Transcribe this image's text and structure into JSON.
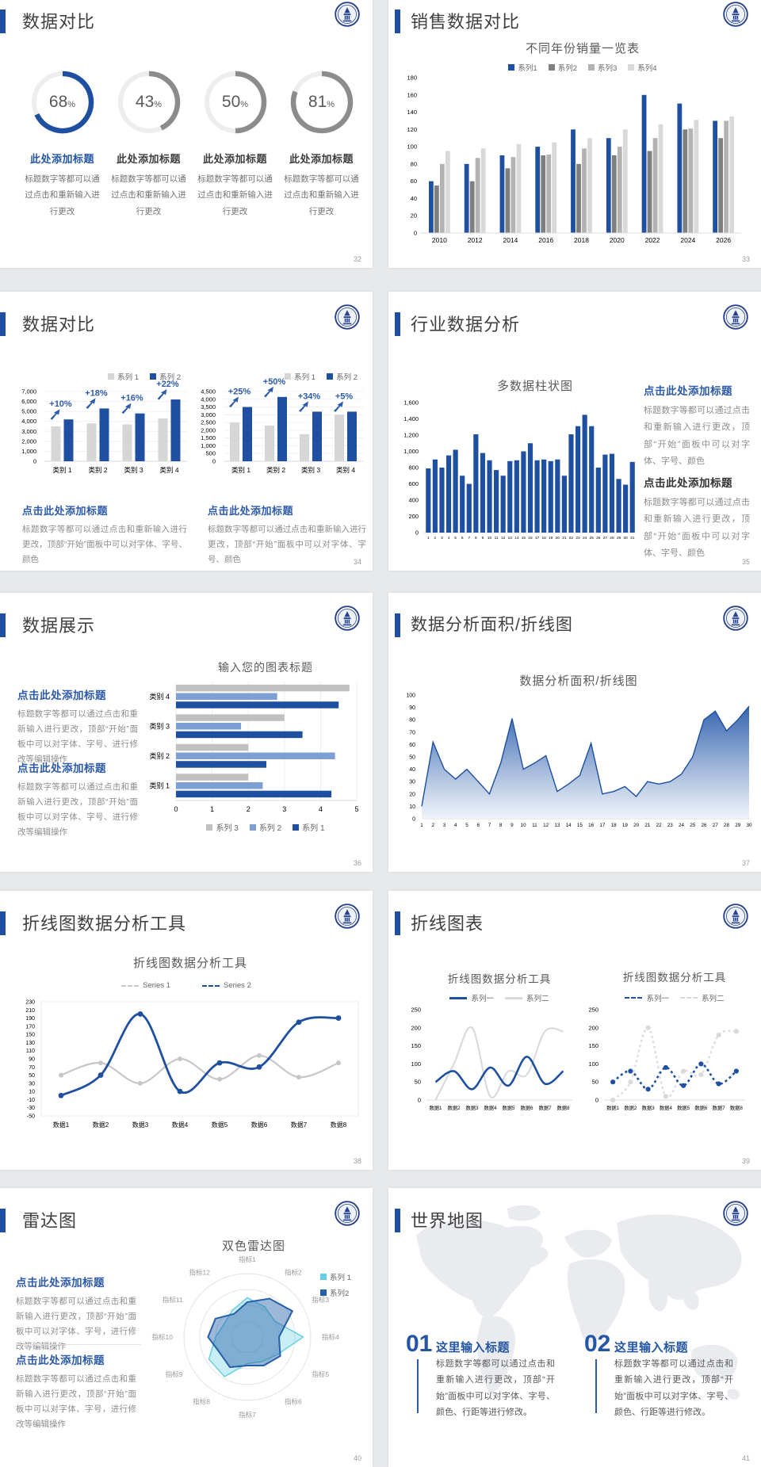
{
  "colors": {
    "primary_blue": "#1f4fa0",
    "accent_blue": "#2d5ba9",
    "dark_gray_series": "#7f7f7f",
    "mid_gray_series": "#b3b3b3",
    "light_gray_series": "#d9d9d9",
    "bar_gray": "#d6d6d6",
    "medium_blue_series": "#7d9fd3",
    "cyan_series": "#67cfe3",
    "line_gray": "#c7c7c7",
    "axis_text": "#8c8c8c",
    "page_bg": "#e8e9eb"
  },
  "slides": [
    {
      "title": "数据对比",
      "page": "32",
      "items": [
        {
          "pct": "68",
          "title": "此处添加标题",
          "body": "标题数字等都可以通过点击和重新输入进行更改"
        },
        {
          "pct": "43",
          "title": "此处添加标题",
          "body": "标题数字等都可以通过点击和重新输入进行更改"
        },
        {
          "pct": "50",
          "title": "此处添加标题",
          "body": "标题数字等都可以通过点击和重新输入进行更改"
        },
        {
          "pct": "81",
          "title": "此处添加标题",
          "body": "标题数字等都可以通过点击和重新输入进行更改"
        }
      ]
    },
    {
      "title": "销售数据对比",
      "page": "33",
      "chart": {
        "type": "bar",
        "title": "不同年份销量一览表",
        "categories": [
          "2010",
          "2012",
          "2014",
          "2016",
          "2018",
          "2020",
          "2022",
          "2024",
          "2026"
        ],
        "ymax": 180,
        "ystep": 20,
        "series": [
          {
            "name": "系列1",
            "color": "#1f4fa0",
            "values": [
              60,
              80,
              90,
              100,
              120,
              110,
              160,
              150,
              130
            ]
          },
          {
            "name": "系列2",
            "color": "#7f7f7f",
            "values": [
              55,
              60,
              75,
              90,
              80,
              90,
              95,
              120,
              110
            ]
          },
          {
            "name": "系列3",
            "color": "#b3b3b3",
            "values": [
              80,
              87,
              88,
              91,
              98,
              100,
              110,
              121,
              130
            ]
          },
          {
            "name": "系列4",
            "color": "#d9d9d9",
            "values": [
              95,
              98,
              103,
              105,
              110,
              120,
              126,
              131,
              135
            ]
          }
        ]
      }
    },
    {
      "title": "数据对比",
      "page": "34",
      "legend": [
        "系列 1",
        "系列 2"
      ],
      "charts": [
        {
          "type": "bar",
          "categories": [
            "类别 1",
            "类别 2",
            "类别 3",
            "类别 4"
          ],
          "ymax": 7000,
          "ystep": 1000,
          "gray": [
            3500,
            3800,
            3700,
            4300
          ],
          "blue": [
            4200,
            5300,
            4800,
            6200
          ],
          "deltas": [
            "+10%",
            "+18%",
            "+16%",
            "+22%"
          ]
        },
        {
          "type": "bar",
          "categories": [
            "类别 1",
            "类别 2",
            "类别 3",
            "类别 4"
          ],
          "ymax": 4500,
          "ystep": 500,
          "gray": [
            2500,
            2300,
            1750,
            3000
          ],
          "blue": [
            3500,
            4150,
            3200,
            3200
          ],
          "deltas": [
            "+25%",
            "+50%",
            "+34%",
            "+5%"
          ]
        }
      ],
      "captions": [
        {
          "title": "点击此处添加标题",
          "body": "标题数字等都可以通过点击和重新输入进行更改，顶部“开始”面板中可以对字体、字号、颜色"
        },
        {
          "title": "点击此处添加标题",
          "body": "标题数字等都可以通过点击和重新输入进行更改，顶部“开始”面板中可以对字体、字号、颜色"
        }
      ]
    },
    {
      "title": "行业数据分析",
      "page": "35",
      "chart": {
        "type": "bar",
        "title": "多数据柱状图",
        "ymax": 1600,
        "ystep": 200,
        "categories": [
          "1",
          "2",
          "3",
          "4",
          "5",
          "6",
          "7",
          "8",
          "9",
          "10",
          "11",
          "12",
          "13",
          "14",
          "15",
          "16",
          "17",
          "18",
          "19",
          "20",
          "21",
          "22",
          "23",
          "24",
          "25",
          "26",
          "27",
          "28",
          "29",
          "30",
          "31"
        ],
        "values": [
          790,
          900,
          800,
          950,
          1020,
          700,
          600,
          1210,
          980,
          890,
          770,
          700,
          880,
          890,
          1000,
          1100,
          890,
          900,
          880,
          900,
          700,
          1210,
          1310,
          1450,
          1310,
          800,
          960,
          970,
          660,
          590,
          870
        ]
      },
      "captions": [
        {
          "title": "点击此处添加标题",
          "body": "标题数字等都可以通过点击和重新输入进行更改，顶部“开始”面板中可以对字体、字号、颜色"
        },
        {
          "title": "点击此处添加标题",
          "body": "标题数字等都可以通过点击和重新输入进行更改，顶部“开始”面板中可以对字体、字号、颜色"
        }
      ]
    },
    {
      "title": "数据展示",
      "page": "36",
      "chart": {
        "type": "bar",
        "orientation": "horizontal",
        "title": "输入您的图表标题",
        "categories": [
          "类别 1",
          "类别 2",
          "类别 3",
          "类别 4"
        ],
        "xmax": 5,
        "xstep": 1,
        "series": [
          {
            "name": "系列 3",
            "color": "#c0c0c0",
            "values": [
              2.0,
              2.0,
              3.0,
              4.8
            ]
          },
          {
            "name": "系列 2",
            "color": "#7d9fd3",
            "values": [
              2.4,
              4.4,
              1.8,
              2.8
            ]
          },
          {
            "name": "系列 1",
            "color": "#1f4fa0",
            "values": [
              4.3,
              2.5,
              3.5,
              4.5
            ]
          }
        ]
      },
      "captions": [
        {
          "title": "点击此处添加标题",
          "body": "标题数字等都可以通过点击和重新输入进行更改，顶部“开始”面板中可以对字体、字号、进行修改等编辑操作"
        },
        {
          "title": "点击此处添加标题",
          "body": "标题数字等都可以通过点击和重新输入进行更改，顶部“开始”面板中可以对字体、字号、进行修改等编辑操作"
        }
      ]
    },
    {
      "title": "数据分析面积/折线图",
      "page": "37",
      "chart": {
        "type": "area",
        "title": "数据分析面积/折线图",
        "ymax": 100,
        "ystep": 10,
        "x": [
          "1",
          "2",
          "3",
          "4",
          "5",
          "6",
          "7",
          "8",
          "9",
          "10",
          "11",
          "12",
          "13",
          "14",
          "15",
          "16",
          "17",
          "18",
          "19",
          "20",
          "21",
          "22",
          "23",
          "24",
          "25",
          "26",
          "27",
          "28",
          "29",
          "30"
        ],
        "values": [
          10,
          62,
          40,
          32,
          40,
          30,
          20,
          45,
          81,
          40,
          45,
          51,
          22,
          28,
          35,
          61,
          20,
          22,
          26,
          18,
          30,
          28,
          30,
          36,
          50,
          80,
          87,
          71,
          80,
          91
        ]
      }
    },
    {
      "title": "折线图数据分析工具",
      "page": "38",
      "chart": {
        "type": "line",
        "title": "折线图数据分析工具",
        "ymin": -50,
        "ymax": 230,
        "ystep": 20,
        "categories": [
          "数据1",
          "数据2",
          "数据3",
          "数据4",
          "数据5",
          "数据6",
          "数据7",
          "数据8"
        ],
        "series": [
          {
            "name": "Series 1",
            "color": "#c7c7c7",
            "values": [
              50,
              80,
              30,
              90,
              40,
              98,
              45,
              80
            ]
          },
          {
            "name": "Series 2",
            "color": "#1f4fa0",
            "values": [
              0,
              50,
              200,
              10,
              80,
              70,
              180,
              190
            ]
          }
        ]
      }
    },
    {
      "title": "折线图表",
      "page": "39",
      "charts": [
        {
          "type": "line",
          "title": "折线图数据分析工具",
          "ymax": 250,
          "ystep": 50,
          "categories": [
            "数据1",
            "数据2",
            "数据3",
            "数据4",
            "数据5",
            "数据6",
            "数据7",
            "数据8"
          ],
          "series": [
            {
              "name": "系列一",
              "color": "#1f4fa0",
              "values": [
                50,
                80,
                30,
                90,
                40,
                120,
                45,
                80
              ]
            },
            {
              "name": "系列二",
              "color": "#d9d9d9",
              "values": [
                0,
                100,
                200,
                10,
                80,
                70,
                190,
                190
              ]
            }
          ]
        },
        {
          "type": "line",
          "title": "折线图数据分析工具",
          "ymax": 250,
          "ystep": 50,
          "categories": [
            "数据1",
            "数据2",
            "数据3",
            "数据4",
            "数据5",
            "数据6",
            "数据7",
            "数据8"
          ],
          "series": [
            {
              "name": "系列一",
              "color": "#1f4fa0",
              "values": [
                50,
                80,
                30,
                90,
                40,
                100,
                45,
                80
              ]
            },
            {
              "name": "系列二",
              "color": "#d9d9d9",
              "values": [
                0,
                50,
                200,
                10,
                80,
                70,
                180,
                190
              ]
            }
          ]
        }
      ]
    },
    {
      "title": "雷达图",
      "page": "40",
      "chart": {
        "type": "radar",
        "title": "双色雷达图",
        "axes": [
          "指标1",
          "指标2",
          "指标3",
          "指标4",
          "指标5",
          "指标6",
          "指标7",
          "指标8",
          "指标9",
          "指标10",
          "指标11",
          "指标12"
        ],
        "series": [
          {
            "name": "系列 1",
            "color": "#67cfe3",
            "values": [
              62,
              55,
              50,
              88,
              55,
              45,
              42,
              72,
              70,
              50,
              42,
              48
            ]
          },
          {
            "name": "系列2",
            "color": "#2560a8",
            "values": [
              55,
              70,
              82,
              50,
              60,
              52,
              45,
              55,
              50,
              62,
              58,
              42
            ]
          }
        ]
      },
      "captions": [
        {
          "title": "点击此处添加标题",
          "body": "标题数字等都可以通过点击和重新输入进行更改，顶部“开始”面板中可以对字体、字号，进行修改等编辑操作"
        },
        {
          "title": "点击此处添加标题",
          "body": "标题数字等都可以通过点击和重新输入进行更改，顶部“开始”面板中可以对字体、字号，进行修改等编辑操作"
        }
      ]
    },
    {
      "title": "世界地图",
      "page": "41",
      "items": [
        {
          "num": "01",
          "title": "这里输入标题",
          "body": "标题数字等都可以通过点击和重新输入进行更改，顶部“开始”面板中可以对字体、字号、颜色、行距等进行修改。"
        },
        {
          "num": "02",
          "title": "这里输入标题",
          "body": "标题数字等都可以通过点击和重新输入进行更改，顶部“开始”面板中可以对字体、字号、颜色、行距等进行修改。"
        }
      ]
    }
  ]
}
